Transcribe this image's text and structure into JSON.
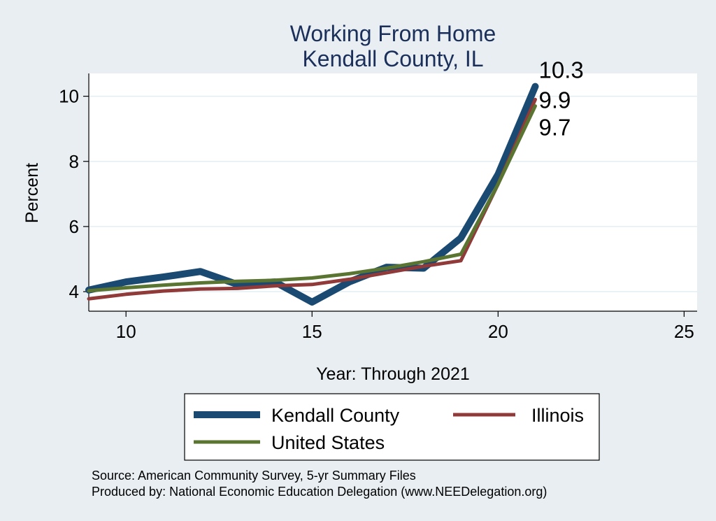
{
  "chart_data": {
    "type": "line",
    "title": "Working From Home",
    "subtitle": "Kendall County, IL",
    "xlabel": "Year: Through 2021",
    "ylabel": "Percent",
    "xlim": [
      9,
      25.5
    ],
    "ylim": [
      3.4,
      10.7
    ],
    "x_ticks": [
      10,
      15,
      20,
      25
    ],
    "y_ticks": [
      4,
      6,
      8,
      10
    ],
    "grid": true,
    "legend_position": "bottom",
    "series": [
      {
        "name": "Kendall County",
        "color": "#1a4971",
        "x": [
          9,
          10,
          11,
          12,
          13,
          14,
          15,
          16,
          17,
          18,
          19,
          20,
          21
        ],
        "values": [
          4.05,
          4.3,
          4.45,
          4.62,
          4.22,
          4.3,
          3.68,
          4.3,
          4.75,
          4.72,
          5.65,
          7.6,
          10.3
        ],
        "end_label": "10.3"
      },
      {
        "name": "Illinois",
        "color": "#903a3a",
        "x": [
          9,
          10,
          11,
          12,
          13,
          14,
          15,
          16,
          17,
          18,
          19,
          20,
          21
        ],
        "values": [
          3.78,
          3.92,
          4.02,
          4.08,
          4.1,
          4.18,
          4.22,
          4.38,
          4.58,
          4.78,
          4.95,
          7.3,
          9.9
        ],
        "end_label": "9.9"
      },
      {
        "name": "United States",
        "color": "#5a7532",
        "x": [
          9,
          10,
          11,
          12,
          13,
          14,
          15,
          16,
          17,
          18,
          19,
          20,
          21
        ],
        "values": [
          4.03,
          4.12,
          4.2,
          4.27,
          4.32,
          4.35,
          4.42,
          4.55,
          4.72,
          4.92,
          5.15,
          7.3,
          9.7
        ],
        "end_label": "9.7"
      }
    ],
    "notes": [
      "Source: American Community Survey, 5-yr Summary Files",
      "Produced by: National Economic Education Delegation (www.NEEDelegation.org)"
    ]
  }
}
